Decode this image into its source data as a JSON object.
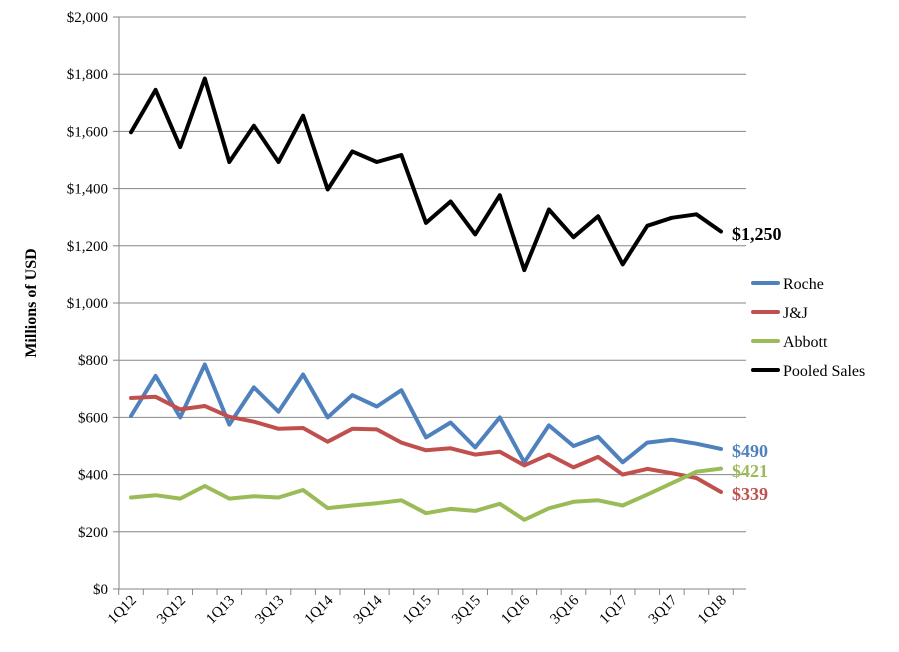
{
  "chart_data": {
    "type": "line",
    "title": "",
    "xlabel": "",
    "ylabel": "Millions of USD",
    "ylim": [
      0,
      2000
    ],
    "yticks": [
      0,
      200,
      400,
      600,
      800,
      1000,
      1200,
      1400,
      1600,
      1800,
      2000
    ],
    "ytick_labels": [
      "$0",
      "$200",
      "$400",
      "$600",
      "$800",
      "$1,000",
      "$1,200",
      "$1,400",
      "$1,600",
      "$1,800",
      "$2,000"
    ],
    "x": [
      "1Q12",
      "2Q12",
      "3Q12",
      "4Q12",
      "1Q13",
      "2Q13",
      "3Q13",
      "4Q13",
      "1Q14",
      "2Q14",
      "3Q14",
      "4Q14",
      "1Q15",
      "2Q15",
      "3Q15",
      "4Q15",
      "1Q16",
      "2Q16",
      "3Q16",
      "4Q16",
      "1Q17",
      "2Q17",
      "3Q17",
      "4Q17",
      "1Q18"
    ],
    "xtick_labels": [
      "1Q12",
      "3Q12",
      "1Q13",
      "3Q13",
      "1Q14",
      "3Q14",
      "1Q15",
      "3Q15",
      "1Q16",
      "3Q16",
      "1Q17",
      "3Q17",
      "1Q18"
    ],
    "grid": true,
    "legend_position": "right",
    "series": [
      {
        "name": "Roche",
        "color": "#4f81bd",
        "values": [
          605,
          745,
          600,
          785,
          575,
          705,
          620,
          750,
          600,
          678,
          638,
          695,
          530,
          582,
          495,
          600,
          443,
          572,
          500,
          532,
          443,
          512,
          522,
          508,
          490
        ],
        "end_label": "$490"
      },
      {
        "name": "J&J",
        "color": "#c0504d",
        "values": [
          668,
          672,
          628,
          640,
          602,
          585,
          560,
          563,
          515,
          560,
          558,
          512,
          485,
          492,
          470,
          480,
          432,
          470,
          425,
          462,
          400,
          420,
          405,
          388,
          339
        ],
        "end_label": "$339"
      },
      {
        "name": "Abbott",
        "color": "#9bbb59",
        "values": [
          320,
          328,
          316,
          360,
          316,
          324,
          320,
          346,
          283,
          292,
          300,
          310,
          265,
          280,
          273,
          298,
          242,
          282,
          305,
          310,
          292,
          330,
          370,
          410,
          421
        ],
        "end_label": "$421"
      },
      {
        "name": "Pooled Sales",
        "color": "#000000",
        "values": [
          1597,
          1745,
          1545,
          1785,
          1493,
          1620,
          1493,
          1655,
          1397,
          1530,
          1493,
          1517,
          1280,
          1355,
          1240,
          1377,
          1115,
          1327,
          1230,
          1303,
          1135,
          1270,
          1298,
          1310,
          1250
        ],
        "end_label": "$1,250"
      }
    ]
  }
}
